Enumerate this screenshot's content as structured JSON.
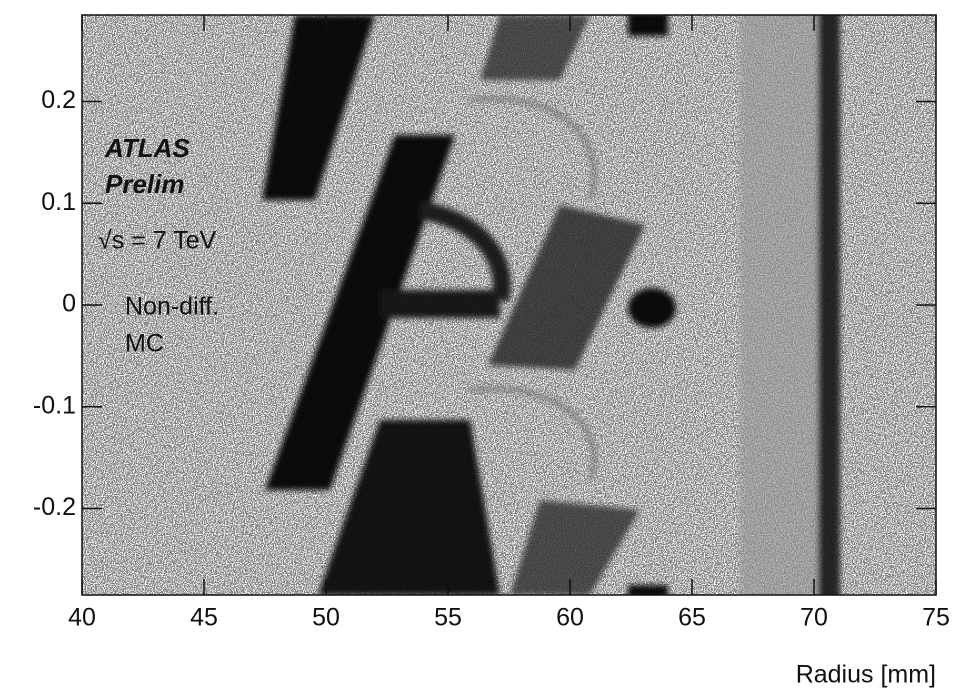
{
  "chart_data": {
    "type": "density",
    "texts": [
      "ATLAS",
      "Prelim",
      "√s = 7 TeV",
      "Non-diff.",
      "MC"
    ],
    "x_label": "Radius [mm]",
    "xlim": [
      40,
      75
    ],
    "xticks": [
      40,
      45,
      50,
      55,
      60,
      65,
      70,
      75
    ],
    "ylim": [
      -0.285,
      0.285
    ],
    "yticks": [
      -0.2,
      -0.1,
      0,
      0.1,
      0.2
    ]
  }
}
